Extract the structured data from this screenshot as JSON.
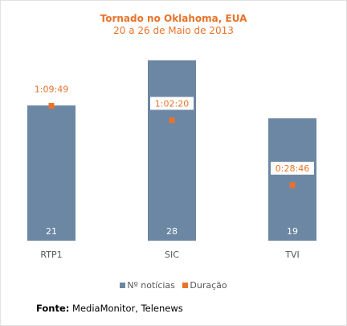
{
  "chart_data": {
    "type": "bar",
    "title": "Tornado no Oklahoma, EUA",
    "subtitle": "20 a 26 de Maio de 2013",
    "categories": [
      "RTP1",
      "SIC",
      "TVI"
    ],
    "series": [
      {
        "name": "Nº notícias",
        "kind": "bar",
        "color": "#6c87a3",
        "values": [
          21,
          28,
          19
        ]
      },
      {
        "name": "Duração",
        "kind": "marker",
        "color": "#e8732a",
        "values": [
          "1:09:49",
          "1:02:20",
          "0:28:46"
        ]
      }
    ],
    "ylim": [
      0,
      30
    ],
    "duration_ylim": [
      "0:00:00",
      "1:40:00"
    ],
    "legend_position": "bottom",
    "grid": false
  },
  "legend": {
    "bars_label": "Nº notícias",
    "markers_label": "Duração"
  },
  "source": {
    "label": "Fonte:",
    "text": " MediaMonitor, Telenews"
  }
}
